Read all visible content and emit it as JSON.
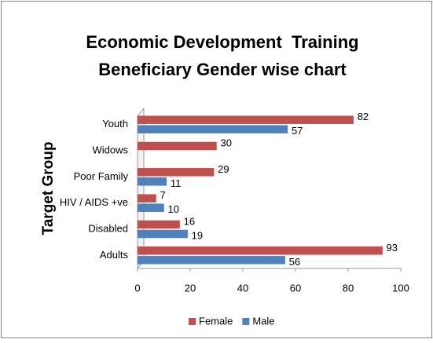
{
  "chart_data": {
    "type": "bar",
    "orientation": "horizontal",
    "title": [
      "Economic Development  Training",
      "Beneficiary Gender wise chart"
    ],
    "y_label": "Target Group",
    "categories": [
      "Adults",
      "Disabled",
      "HIV / AIDS +ve",
      "Poor Family",
      "Widows",
      "Youth"
    ],
    "series": [
      {
        "name": "Female",
        "color": "#c0504d",
        "values": [
          93,
          16,
          7,
          29,
          30,
          82
        ]
      },
      {
        "name": "Male",
        "color": "#4f81bd",
        "values": [
          56,
          19,
          10,
          11,
          null,
          57
        ]
      }
    ],
    "xlim": [
      0,
      100
    ],
    "xticks": [
      0,
      20,
      40,
      60,
      80,
      100
    ],
    "grid": false,
    "legend": "bottom",
    "data_labels": true
  }
}
